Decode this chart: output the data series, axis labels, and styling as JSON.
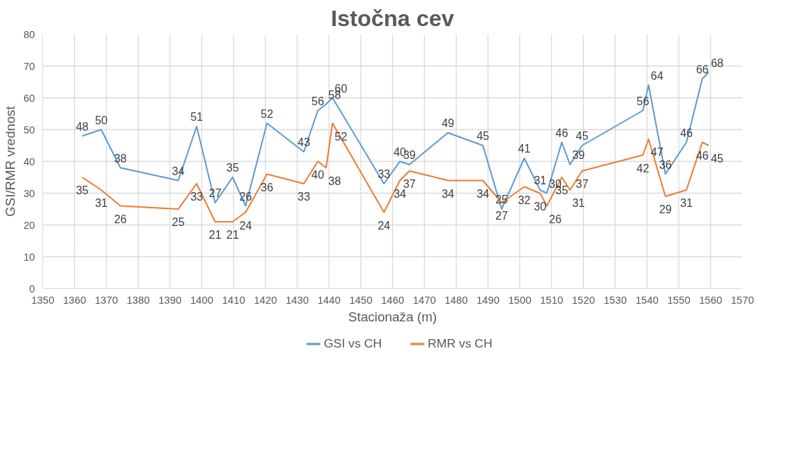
{
  "chart_data": {
    "type": "line",
    "title": "Istočna cev",
    "xlabel": "Stacionaža (m)",
    "ylabel": "GSI/RMR vrednost",
    "x": [
      1362.4,
      1368.4,
      1374.4,
      1392.6,
      1398.4,
      1404.2,
      1409.7,
      1413.8,
      1420.5,
      1432.1,
      1436.5,
      1439.1,
      1441.1,
      1457.3,
      1462.3,
      1465.3,
      1477.4,
      1488.4,
      1494.3,
      1501.4,
      1506.4,
      1508.5,
      1513.2,
      1515.8,
      1519.6,
      1538.7,
      1540.5,
      1545.8,
      1552.4,
      1557.4,
      1559.4
    ],
    "series": [
      {
        "name": "GSI vs CH",
        "color": "#5b9bd5",
        "values": [
          48,
          50,
          38,
          34,
          51,
          27,
          35,
          26,
          52,
          43,
          56,
          58,
          60,
          33,
          40,
          39,
          49,
          45,
          25,
          41,
          31,
          30,
          46,
          39,
          45,
          56,
          64,
          36,
          46,
          66,
          68
        ]
      },
      {
        "name": "RMR vs CH",
        "color": "#ed7d31",
        "values": [
          35,
          31,
          26,
          25,
          33,
          21,
          21,
          24,
          36,
          33,
          40,
          38,
          52,
          24,
          34,
          37,
          34,
          34,
          27,
          32,
          30,
          26,
          35,
          31,
          37,
          42,
          47,
          29,
          31,
          46,
          45
        ]
      }
    ],
    "xlim": [
      1350,
      1570
    ],
    "xticks": [
      1350,
      1360,
      1370,
      1380,
      1390,
      1400,
      1410,
      1420,
      1430,
      1440,
      1450,
      1460,
      1470,
      1480,
      1490,
      1500,
      1510,
      1520,
      1530,
      1540,
      1550,
      1560,
      1570
    ],
    "ylim": [
      0,
      80
    ],
    "yticks": [
      0,
      10,
      20,
      30,
      40,
      50,
      60,
      70,
      80
    ],
    "grid": true,
    "legend": "bottom",
    "marker": "none",
    "line_style": "solid",
    "data_labels": true
  }
}
